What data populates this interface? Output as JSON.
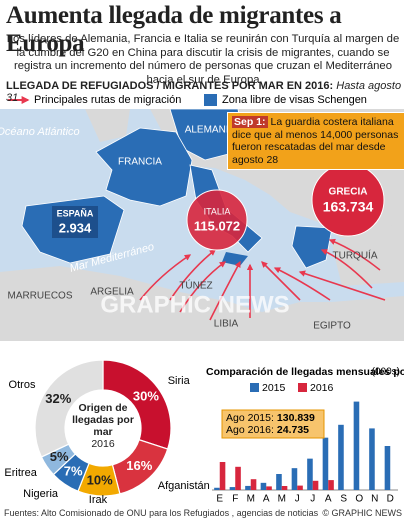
{
  "header": {
    "title": "Aumenta llegada de migrantes a Europa",
    "text": "Los líderes de Alemania, Francia e Italia se reunirán con Turquía al margen de la cumbre del G20 en China para discutir la crisis de migrantes, cuando se registra un incremento del número de personas que cruzan el Mediterráneo hacia el sur de Europa",
    "subhead": "LLEGADA DE REFUGIADOS / MIGRANTES POR MAR EN 2016:",
    "subhead_note": "Hasta agosto 31"
  },
  "legend": [
    "Principales rutas de migración",
    "Zona libre de visas Schengen"
  ],
  "map": {
    "ocean": "Océano Atlántico",
    "sea": "Mar Mediterráneo",
    "countries": [
      "ALEMANIA",
      "FRANCIA",
      "TURQUÍA",
      "MARRUECOS",
      "ARGELIA",
      "TÚNEZ",
      "LIBIA",
      "EGIPTO"
    ],
    "arrivals": [
      {
        "name": "ESPAÑA",
        "figure": "2.934"
      },
      {
        "name": "ITALIA",
        "figure": "115.072"
      },
      {
        "name": "GRECIA",
        "figure": "163.734"
      }
    ],
    "callout": {
      "label": "Sep 1:",
      "text": "La guardia costera italiana dice que al menos 14,000 personas fueron rescatadas del mar desde agosto 28"
    },
    "watermark": "GRAPHIC NEWS"
  },
  "chart_data": [
    {
      "type": "donut",
      "title": "Origen de llegadas por mar",
      "subtitle": "2016",
      "categories": [
        "Siria",
        "Afganistán",
        "Irak",
        "Nigeria",
        "Eritrea",
        "Otros"
      ],
      "values": [
        30,
        16,
        10,
        7,
        5,
        32
      ],
      "value_labels": [
        "30%",
        "16%",
        "10%",
        "7%",
        "5%",
        "32%"
      ],
      "colors": [
        "#c8102e",
        "#d9333f",
        "#f2a900",
        "#2a6db5",
        "#8fb8de",
        "#e0e0e0"
      ]
    },
    {
      "type": "bar",
      "title": "Comparación de llegadas mensuales por mar",
      "ylabel": "(000s)",
      "categories": [
        "E",
        "F",
        "M",
        "A",
        "M",
        "J",
        "J",
        "A",
        "S",
        "O",
        "N",
        "D"
      ],
      "series": [
        {
          "name": "2015",
          "color": "#2a6db5",
          "values": [
            5.6,
            7.3,
            10.2,
            17.9,
            40,
            54.6,
            78.4,
            130.839,
            163,
            221,
            154,
            110
          ]
        },
        {
          "name": "2016",
          "color": "#d7263d",
          "values": [
            70,
            58,
            27,
            9,
            10,
            11,
            23,
            24.735,
            null,
            null,
            null,
            null
          ]
        }
      ],
      "ylim": [
        0,
        230
      ],
      "annotations": [
        {
          "label": "Ago 2015:",
          "value": "130.839"
        },
        {
          "label": "Ago 2016:",
          "value": "24.735"
        }
      ]
    }
  ],
  "footer": {
    "source": "Fuentes: Alto Comisionado de ONU para los Refugiados , agencias de noticias",
    "credit": "© GRAPHIC NEWS"
  }
}
